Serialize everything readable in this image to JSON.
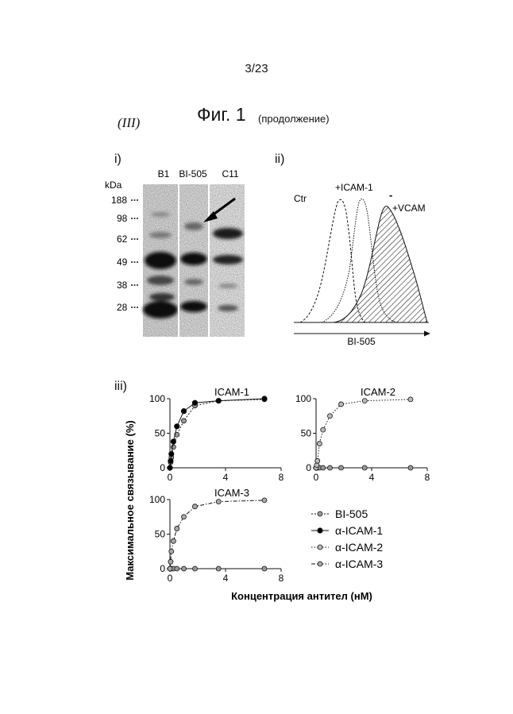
{
  "page_number": "3/23",
  "section_label": "(III)",
  "figure_title": "Фиг. 1",
  "figure_subtitle": "(продолжение)",
  "panel_i": {
    "label": "i)",
    "lanes": [
      "B1",
      "BI-505",
      "C11"
    ],
    "unit": "kDa",
    "markers": [
      "188",
      "98",
      "62",
      "49",
      "38",
      "28"
    ]
  },
  "panel_ii": {
    "label": "ii)",
    "curve_labels": [
      "Ctr",
      "+ICAM-1",
      "+VCAM"
    ],
    "minus_sign": "-",
    "xlabel": "BI-505"
  },
  "panel_iii": {
    "label": "iii)",
    "ylabel": "Максимальное связывание (%)",
    "xlabel": "Концентрация антител (нМ)",
    "legend": [
      "BI-505",
      "α-ICAM-1",
      "α-ICAM-2",
      "α-ICAM-3"
    ],
    "subplots": [
      {
        "title": "ICAM-1",
        "yticks": [
          "100",
          "50",
          "0"
        ],
        "xticks": [
          "0",
          "4",
          "8"
        ]
      },
      {
        "title": "ICAM-2",
        "yticks": [
          "100",
          "50",
          "0"
        ],
        "xticks": [
          "0",
          "4",
          "8"
        ]
      },
      {
        "title": "ICAM-3",
        "yticks": [
          "100",
          "50",
          "0"
        ],
        "xticks": [
          "0",
          "4",
          "8"
        ]
      }
    ]
  },
  "chart_data": [
    {
      "type": "line",
      "title": "ICAM-1",
      "xlim": [
        0,
        8
      ],
      "ylim": [
        0,
        100
      ],
      "series": [
        {
          "name": "BI-505",
          "x": [
            0,
            0.05,
            0.1,
            0.25,
            0.5,
            1.0,
            1.8,
            3.5,
            6.8
          ],
          "y": [
            0,
            8,
            15,
            30,
            48,
            68,
            90,
            97,
            99
          ]
        },
        {
          "name": "α-ICAM-1",
          "x": [
            0,
            0.05,
            0.1,
            0.25,
            0.5,
            1.0,
            1.8,
            3.5,
            6.8
          ],
          "y": [
            0,
            10,
            20,
            38,
            60,
            82,
            94,
            97,
            100
          ]
        }
      ]
    },
    {
      "type": "line",
      "title": "ICAM-2",
      "xlim": [
        0,
        8
      ],
      "ylim": [
        0,
        100
      ],
      "series": [
        {
          "name": "BI-505",
          "x": [
            0,
            0.05,
            0.1,
            0.25,
            0.5,
            1.0,
            1.8,
            3.5,
            6.8
          ],
          "y": [
            0,
            0,
            0,
            0,
            0,
            0,
            0,
            0,
            0
          ]
        },
        {
          "name": "α-ICAM-2",
          "x": [
            0,
            0.05,
            0.1,
            0.25,
            0.5,
            1.0,
            1.8,
            3.5,
            6.8
          ],
          "y": [
            0,
            4,
            10,
            35,
            55,
            75,
            92,
            97,
            99
          ]
        }
      ]
    },
    {
      "type": "line",
      "title": "ICAM-3",
      "xlim": [
        0,
        8
      ],
      "ylim": [
        0,
        100
      ],
      "series": [
        {
          "name": "BI-505",
          "x": [
            0,
            0.05,
            0.1,
            0.25,
            0.5,
            1.0,
            1.8,
            3.5,
            6.8
          ],
          "y": [
            0,
            0,
            0,
            0,
            0,
            0,
            0,
            0,
            0
          ]
        },
        {
          "name": "α-ICAM-3",
          "x": [
            0,
            0.05,
            0.1,
            0.25,
            0.5,
            1.0,
            1.8,
            3.5,
            6.8
          ],
          "y": [
            0,
            10,
            25,
            40,
            58,
            75,
            90,
            97,
            99
          ]
        }
      ]
    }
  ]
}
